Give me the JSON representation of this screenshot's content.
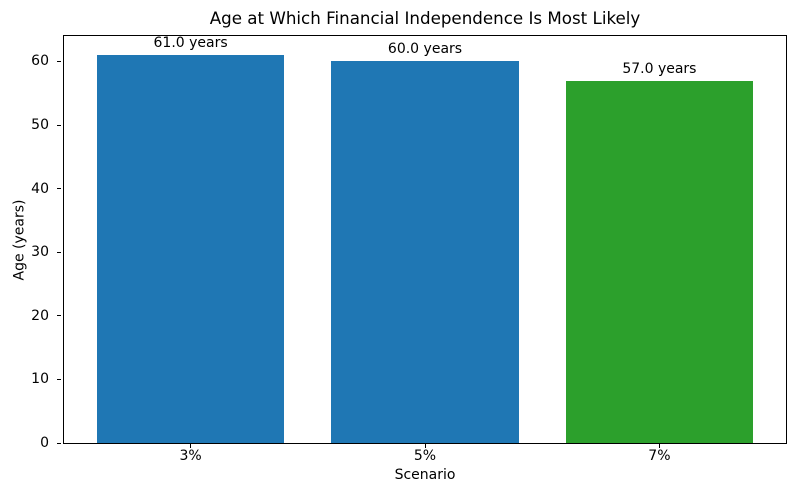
{
  "chart_data": {
    "type": "bar",
    "title": "Age at Which Financial Independence Is Most Likely",
    "xlabel": "Scenario",
    "ylabel": "Age (years)",
    "categories": [
      "3%",
      "5%",
      "7%"
    ],
    "values": [
      61.0,
      60.0,
      57.0
    ],
    "bar_labels": [
      "61.0 years",
      "60.0 years",
      "57.0 years"
    ],
    "bar_colors": [
      "#1f77b4",
      "#1f77b4",
      "#2ca02c"
    ],
    "ylim": [
      0,
      64
    ],
    "yticks": [
      0,
      10,
      20,
      30,
      40,
      50,
      60
    ],
    "ytick_labels": [
      "0",
      "10",
      "20",
      "30",
      "40",
      "50",
      "60"
    ],
    "bar_width_fraction": 0.8,
    "grid": false,
    "legend_position": "none",
    "background_color": "#ffffff",
    "spine_color": "#000000",
    "text_color": "#000000"
  }
}
